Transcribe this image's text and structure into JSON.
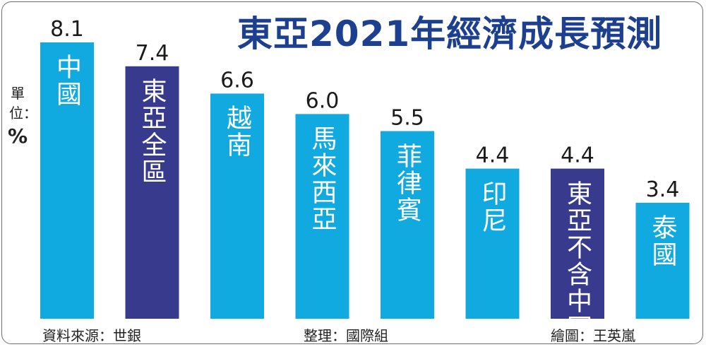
{
  "title": "東亞2021年經濟成長預測",
  "unit_label": "單位：",
  "unit_symbol": "%",
  "colors": {
    "light": "#10a9e0",
    "dark": "#383a8e",
    "title": "#1c3f8f"
  },
  "chart_data": {
    "type": "bar",
    "title": "東亞2021年經濟成長預測",
    "ylabel": "單位：%",
    "categories": [
      "中國",
      "東亞全區",
      "越南",
      "馬來西亞",
      "菲律賓",
      "印尼",
      "東亞不含中國",
      "泰國"
    ],
    "values": [
      8.1,
      7.4,
      6.6,
      6.0,
      5.5,
      4.4,
      4.4,
      3.4
    ],
    "value_labels": [
      "8.1",
      "7.4",
      "6.6",
      "6.0",
      "5.5",
      "4.4",
      "4.4",
      "3.4"
    ],
    "highlight": [
      false,
      true,
      false,
      false,
      false,
      false,
      true,
      false
    ],
    "ylim": [
      0,
      8.1
    ]
  },
  "footer": {
    "source": "資料來源：世銀",
    "editor": "整理：國際組",
    "artist": "繪圖：王英嵐"
  }
}
